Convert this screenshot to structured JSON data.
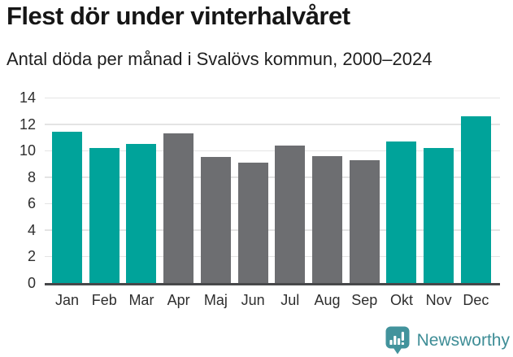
{
  "header": {
    "title": "Flest dör under vinterhalvåret",
    "subtitle": "Antal döda per månad i Svalövs kommun, 2000–2024"
  },
  "chart_data": {
    "type": "bar",
    "title": "Flest dör under vinterhalvåret",
    "subtitle": "Antal döda per månad i Svalövs kommun, 2000–2024",
    "categories": [
      "Jan",
      "Feb",
      "Mar",
      "Apr",
      "Maj",
      "Jun",
      "Jul",
      "Aug",
      "Sep",
      "Okt",
      "Nov",
      "Dec"
    ],
    "values": [
      11.4,
      10.2,
      10.5,
      11.3,
      9.5,
      9.1,
      10.4,
      9.6,
      9.3,
      10.7,
      10.2,
      12.6
    ],
    "bar_palette": [
      "teal",
      "teal",
      "teal",
      "gray",
      "gray",
      "gray",
      "gray",
      "gray",
      "gray",
      "teal",
      "teal",
      "teal"
    ],
    "colors": {
      "teal": "#00a39a",
      "gray": "#6d6e71",
      "axis_line": "#47484a",
      "gridline": "#e4e4e4",
      "tick_text": "#2e2e2e"
    },
    "xlabel": "",
    "ylabel": "",
    "ylim": [
      0,
      14
    ],
    "yticks": [
      0,
      2,
      4,
      6,
      8,
      10,
      12,
      14
    ],
    "grid": true,
    "legend": false
  },
  "footer": {
    "brand": "Newsworthy",
    "brand_color": "#3e8d96",
    "logo_icon": "bar-chart-speech-bubble-icon"
  }
}
